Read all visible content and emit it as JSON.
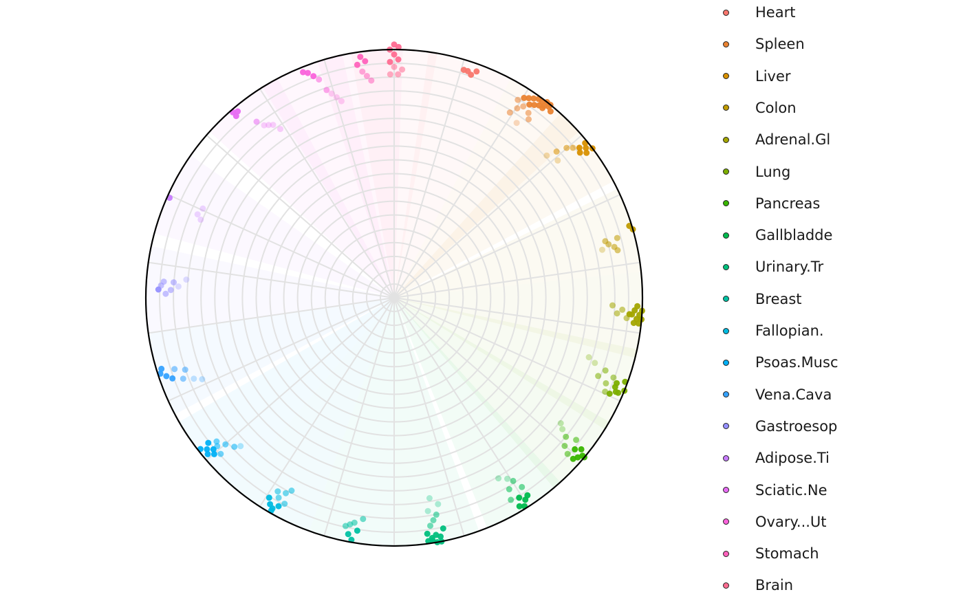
{
  "chart_data": {
    "type": "scatter",
    "coordinate_system": "polar",
    "title": "",
    "xlabel": "",
    "ylabel": "",
    "grid": true,
    "legend_position": "right",
    "series": [
      {
        "name": "Heart",
        "color": "#F8766D",
        "angle_deg": 72,
        "points": [
          [
            72,
            0.96
          ],
          [
            71,
            0.95
          ],
          [
            70,
            0.97
          ],
          [
            73,
            0.96
          ]
        ]
      },
      {
        "name": "Spleen",
        "color": "#EA8331",
        "angle_deg": 52,
        "points": [
          [
            52,
            0.98
          ],
          [
            52,
            1.0
          ],
          [
            51,
            0.99
          ],
          [
            53,
            0.97
          ],
          [
            54,
            0.96
          ],
          [
            50,
            0.98
          ],
          [
            55,
            0.95
          ],
          [
            56,
            0.93
          ],
          [
            57,
            0.91
          ],
          [
            53,
            0.99
          ],
          [
            52,
            0.97
          ],
          [
            54,
            0.99
          ],
          [
            51,
            1.0
          ],
          [
            55,
            0.98
          ],
          [
            56,
            0.97
          ],
          [
            57,
            0.96
          ],
          [
            58,
            0.94
          ],
          [
            54,
            0.92
          ],
          [
            53,
            0.9
          ],
          [
            58,
            0.88
          ],
          [
            55,
            0.86
          ]
        ]
      },
      {
        "name": "Liver",
        "color": "#D89000",
        "angle_deg": 38,
        "points": [
          [
            38,
            0.98
          ],
          [
            37,
            0.97
          ],
          [
            39,
            0.96
          ],
          [
            38,
            0.95
          ],
          [
            40,
            0.94
          ],
          [
            41,
            0.92
          ],
          [
            42,
            0.88
          ],
          [
            40,
            0.86
          ],
          [
            43,
            0.84
          ],
          [
            39,
            0.99
          ],
          [
            37,
            1.0
          ]
        ]
      },
      {
        "name": "Colon",
        "color": "#C09B00",
        "angle_deg": 16,
        "points": [
          [
            16,
            1.0
          ],
          [
            17,
            0.99
          ],
          [
            13,
            0.91
          ],
          [
            14,
            0.89
          ],
          [
            15,
            0.88
          ],
          [
            12,
            0.92
          ],
          [
            13,
            0.86
          ],
          [
            15,
            0.93
          ]
        ]
      },
      {
        "name": "Adrenal.Gl",
        "color": "#A3A500",
        "angle_deg": -4,
        "points": [
          [
            -4,
            0.99
          ],
          [
            -5,
            0.98
          ],
          [
            -3,
            1.0
          ],
          [
            -6,
            0.97
          ],
          [
            -4,
            0.96
          ],
          [
            -5,
            0.94
          ],
          [
            -3,
            0.92
          ],
          [
            -2,
            0.88
          ],
          [
            -4,
            0.9
          ],
          [
            -6,
            0.99
          ],
          [
            -3,
            0.97
          ],
          [
            -5,
            1.0
          ],
          [
            -4,
            0.95
          ],
          [
            -2,
            0.98
          ]
        ]
      },
      {
        "name": "Lung",
        "color": "#7CAE00",
        "angle_deg": -22,
        "points": [
          [
            -22,
            1.0
          ],
          [
            -23,
            0.98
          ],
          [
            -21,
            0.96
          ],
          [
            -20,
            0.94
          ],
          [
            -22,
            0.92
          ],
          [
            -24,
            0.95
          ],
          [
            -19,
            0.9
          ],
          [
            -21,
            0.88
          ],
          [
            -18,
            0.85
          ],
          [
            -17,
            0.82
          ],
          [
            -23,
            0.97
          ],
          [
            -20,
            0.99
          ],
          [
            -24,
            0.93
          ],
          [
            -22,
            0.96
          ]
        ]
      },
      {
        "name": "Pancreas",
        "color": "#39B600",
        "angle_deg": -40,
        "points": [
          [
            -40,
            0.99
          ],
          [
            -41,
            0.98
          ],
          [
            -39,
            0.97
          ],
          [
            -40,
            0.95
          ],
          [
            -42,
            0.94
          ],
          [
            -38,
            0.93
          ],
          [
            -41,
            0.91
          ],
          [
            -39,
            0.89
          ],
          [
            -38,
            0.86
          ],
          [
            -37,
            0.84
          ],
          [
            -42,
            0.97
          ],
          [
            -40,
            1.0
          ]
        ]
      },
      {
        "name": "Gallbladde",
        "color": "#00BB4E",
        "angle_deg": -58,
        "points": [
          [
            -58,
            0.99
          ],
          [
            -59,
            0.98
          ],
          [
            -57,
            0.97
          ],
          [
            -58,
            0.95
          ],
          [
            -60,
            0.94
          ],
          [
            -56,
            0.92
          ],
          [
            -59,
            0.9
          ],
          [
            -57,
            0.88
          ],
          [
            -58,
            0.86
          ],
          [
            -60,
            0.84
          ],
          [
            -56,
            0.96
          ]
        ]
      },
      {
        "name": "Urinary.Tr",
        "color": "#00BF7D",
        "angle_deg": -80,
        "points": [
          [
            -80,
            1.0
          ],
          [
            -81,
            0.99
          ],
          [
            -79,
            0.98
          ],
          [
            -80,
            0.97
          ],
          [
            -82,
            0.96
          ],
          [
            -78,
            0.95
          ],
          [
            -81,
            0.93
          ],
          [
            -80,
            0.91
          ],
          [
            -79,
            0.89
          ],
          [
            -81,
            0.87
          ],
          [
            -78,
            0.85
          ],
          [
            -80,
            0.82
          ],
          [
            -82,
            0.99
          ],
          [
            -79,
            1.0
          ],
          [
            -81,
            0.98
          ]
        ]
      },
      {
        "name": "Breast",
        "color": "#00C1A3",
        "angle_deg": -100,
        "points": [
          [
            -100,
            0.99
          ],
          [
            -101,
            0.97
          ],
          [
            -99,
            0.95
          ],
          [
            -102,
            0.94
          ],
          [
            -100,
            0.92
          ],
          [
            -98,
            0.9
          ],
          [
            -101,
            0.93
          ]
        ]
      },
      {
        "name": "Fallopian.",
        "color": "#00BAE0",
        "angle_deg": -120,
        "points": [
          [
            -120,
            0.98
          ],
          [
            -121,
            0.97
          ],
          [
            -119,
            0.96
          ],
          [
            -122,
            0.95
          ],
          [
            -118,
            0.94
          ],
          [
            -120,
            0.93
          ],
          [
            -121,
            0.91
          ],
          [
            -119,
            0.9
          ],
          [
            -118,
            0.88
          ],
          [
            -120,
            0.99
          ]
        ]
      },
      {
        "name": "Psoas.Musc",
        "color": "#00B0F6",
        "angle_deg": -140,
        "points": [
          [
            -140,
            0.98
          ],
          [
            -141,
            0.97
          ],
          [
            -139,
            0.96
          ],
          [
            -142,
            0.95
          ],
          [
            -138,
            0.94
          ],
          [
            -140,
            0.93
          ],
          [
            -141,
            0.92
          ],
          [
            -139,
            0.9
          ],
          [
            -137,
            0.88
          ],
          [
            -136,
            0.86
          ],
          [
            -142,
            0.99
          ],
          [
            -140,
            0.95
          ]
        ]
      },
      {
        "name": "Vena.Cava",
        "color": "#35A2FF",
        "angle_deg": -162,
        "points": [
          [
            -162,
            0.99
          ],
          [
            -163,
            0.98
          ],
          [
            -161,
            0.97
          ],
          [
            -160,
            0.95
          ],
          [
            -162,
            0.93
          ],
          [
            -159,
            0.91
          ],
          [
            -161,
            0.89
          ],
          [
            -158,
            0.87
          ],
          [
            -157,
            0.84
          ]
        ]
      },
      {
        "name": "Gastroesop",
        "color": "#9590FF",
        "angle_deg": 178,
        "points": [
          [
            178,
            0.95
          ],
          [
            177,
            0.94
          ],
          [
            176,
            0.93
          ],
          [
            179,
            0.92
          ],
          [
            178,
            0.9
          ],
          [
            176,
            0.89
          ],
          [
            177,
            0.87
          ],
          [
            175,
            0.84
          ]
        ]
      },
      {
        "name": "Adipose.Ti",
        "color": "#C77CFF",
        "angle_deg": 155,
        "points": [
          [
            156,
            0.99
          ],
          [
            157,
            0.86
          ],
          [
            155,
            0.85
          ],
          [
            158,
            0.84
          ]
        ]
      },
      {
        "name": "Sciatic.Ne",
        "color": "#E76BF3",
        "angle_deg": 128,
        "points": [
          [
            131,
            0.99
          ],
          [
            130,
            0.98
          ],
          [
            131,
            0.97
          ],
          [
            128,
            0.9
          ],
          [
            127,
            0.87
          ],
          [
            125,
            0.85
          ],
          [
            124,
            0.82
          ],
          [
            126,
            0.86
          ]
        ]
      },
      {
        "name": "Ovary...Ut",
        "color": "#FA62DB",
        "angle_deg": 112,
        "points": [
          [
            112,
            0.98
          ],
          [
            111,
            0.97
          ],
          [
            110,
            0.95
          ],
          [
            109,
            0.93
          ],
          [
            108,
            0.88
          ],
          [
            107,
            0.86
          ],
          [
            106,
            0.84
          ],
          [
            105,
            0.82
          ]
        ]
      },
      {
        "name": "Stomach",
        "color": "#FF62BC",
        "angle_deg": 98,
        "points": [
          [
            98,
            0.98
          ],
          [
            97,
            0.96
          ],
          [
            99,
            0.95
          ],
          [
            98,
            0.92
          ],
          [
            97,
            0.9
          ],
          [
            96,
            0.88
          ]
        ]
      },
      {
        "name": "Brain",
        "color": "#FF6C91",
        "angle_deg": 90,
        "points": [
          [
            90,
            1.02
          ],
          [
            89,
            1.01
          ],
          [
            91,
            1.0
          ],
          [
            90,
            0.98
          ],
          [
            89,
            0.96
          ],
          [
            91,
            0.95
          ],
          [
            90,
            0.93
          ],
          [
            88,
            0.92
          ],
          [
            89,
            0.9
          ],
          [
            91,
            0.9
          ]
        ]
      }
    ]
  }
}
